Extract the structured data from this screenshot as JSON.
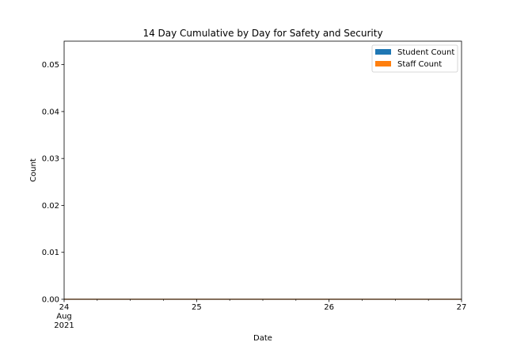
{
  "chart_data": {
    "type": "area",
    "title": "14 Day Cumulative by Day for Safety and Security",
    "xlabel": "Date",
    "ylabel": "Count",
    "x_ticks": [
      {
        "value": "2021-08-24",
        "lines": [
          "24",
          "Aug",
          "2021"
        ]
      },
      {
        "value": "2021-08-25",
        "lines": [
          "25"
        ]
      },
      {
        "value": "2021-08-26",
        "lines": [
          "26"
        ]
      },
      {
        "value": "2021-08-27",
        "lines": [
          "27"
        ]
      }
    ],
    "y_ticks": [
      "0.00",
      "0.01",
      "0.02",
      "0.03",
      "0.04",
      "0.05"
    ],
    "xlim": [
      "2021-08-24",
      "2021-08-27"
    ],
    "ylim": [
      0,
      0.055
    ],
    "x": [
      "2021-08-24",
      "2021-08-25",
      "2021-08-26",
      "2021-08-27"
    ],
    "series": [
      {
        "name": "Student Count",
        "color": "#1f77b4",
        "values": [
          0,
          0,
          0,
          0
        ]
      },
      {
        "name": "Staff Count",
        "color": "#ff7f0e",
        "values": [
          0,
          0,
          0,
          0
        ]
      }
    ],
    "stacked": true,
    "grid": false,
    "legend_position": "top-right"
  }
}
